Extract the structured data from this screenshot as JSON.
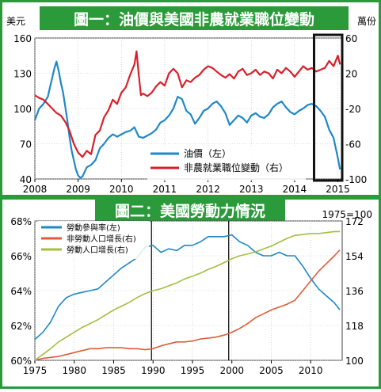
{
  "chart_data": [
    {
      "type": "line",
      "title": "圖一：油價與美國非農就業職位變動",
      "left_unit": "美元",
      "right_unit": "萬份",
      "x_ticks": [
        "2008",
        "2009",
        "2010",
        "2011",
        "2012",
        "2013",
        "2014",
        "2015"
      ],
      "x_range": [
        2008,
        2015.1
      ],
      "y_left_ticks": [
        "40",
        "70",
        "100",
        "130",
        "160"
      ],
      "y_left_range": [
        40,
        160
      ],
      "y_right_ticks": [
        "-100",
        "-60",
        "-20",
        "20",
        "60"
      ],
      "y_right_range": [
        -100,
        60
      ],
      "legend": [
        "油價（左）",
        "非農就業職位變動（右）"
      ],
      "grid": true,
      "highlight_box": [
        2014.45,
        2015.1
      ],
      "series": [
        {
          "name": "油價（左）",
          "axis": "left",
          "color": "#1e88c8",
          "x": [
            2008.0,
            2008.1,
            2008.2,
            2008.3,
            2008.35,
            2008.4,
            2008.45,
            2008.5,
            2008.55,
            2008.6,
            2008.65,
            2008.7,
            2008.75,
            2008.8,
            2008.85,
            2008.9,
            2008.95,
            2009.0,
            2009.05,
            2009.1,
            2009.15,
            2009.2,
            2009.3,
            2009.4,
            2009.5,
            2009.6,
            2009.7,
            2009.8,
            2009.9,
            2010.0,
            2010.1,
            2010.2,
            2010.3,
            2010.4,
            2010.5,
            2010.6,
            2010.7,
            2010.8,
            2010.9,
            2011.0,
            2011.1,
            2011.2,
            2011.3,
            2011.4,
            2011.5,
            2011.6,
            2011.7,
            2011.8,
            2011.9,
            2012.0,
            2012.1,
            2012.2,
            2012.3,
            2012.4,
            2012.5,
            2012.6,
            2012.7,
            2012.8,
            2012.9,
            2013.0,
            2013.1,
            2013.2,
            2013.3,
            2013.4,
            2013.5,
            2013.6,
            2013.7,
            2013.8,
            2013.9,
            2014.0,
            2014.1,
            2014.2,
            2014.3,
            2014.4,
            2014.5,
            2014.6,
            2014.7,
            2014.8,
            2014.9,
            2015.0,
            2015.05
          ],
          "y": [
            90,
            100,
            104,
            110,
            118,
            126,
            134,
            140,
            132,
            122,
            114,
            102,
            90,
            76,
            64,
            56,
            48,
            43,
            41,
            42,
            46,
            50,
            52,
            56,
            66,
            70,
            75,
            78,
            76,
            78,
            80,
            81,
            84,
            76,
            75,
            77,
            79,
            82,
            88,
            90,
            94,
            100,
            110,
            108,
            98,
            95,
            87,
            92,
            98,
            100,
            104,
            106,
            102,
            96,
            86,
            90,
            94,
            92,
            88,
            94,
            96,
            93,
            92,
            95,
            101,
            104,
            106,
            101,
            97,
            95,
            98,
            100,
            103,
            104,
            102,
            98,
            93,
            82,
            75,
            58,
            48
          ]
        },
        {
          "name": "非農就業職位變動（右）",
          "axis": "right",
          "color": "#d8202a",
          "x": [
            2008.0,
            2008.1,
            2008.2,
            2008.3,
            2008.4,
            2008.5,
            2008.6,
            2008.7,
            2008.8,
            2008.9,
            2009.0,
            2009.1,
            2009.2,
            2009.3,
            2009.4,
            2009.5,
            2009.6,
            2009.7,
            2009.8,
            2009.9,
            2010.0,
            2010.1,
            2010.2,
            2010.3,
            2010.35,
            2010.4,
            2010.45,
            2010.5,
            2010.6,
            2010.7,
            2010.8,
            2010.9,
            2011.0,
            2011.1,
            2011.2,
            2011.3,
            2011.4,
            2011.5,
            2011.6,
            2011.7,
            2011.8,
            2011.9,
            2012.0,
            2012.1,
            2012.2,
            2012.3,
            2012.4,
            2012.5,
            2012.6,
            2012.7,
            2012.8,
            2012.9,
            2013.0,
            2013.1,
            2013.2,
            2013.3,
            2013.4,
            2013.5,
            2013.6,
            2013.7,
            2013.8,
            2013.9,
            2014.0,
            2014.1,
            2014.2,
            2014.3,
            2014.4,
            2014.5,
            2014.6,
            2014.7,
            2014.8,
            2014.9,
            2015.0,
            2015.05
          ],
          "y": [
            -5,
            -8,
            -10,
            -15,
            -20,
            -25,
            -28,
            -35,
            -45,
            -60,
            -70,
            -75,
            -68,
            -72,
            -50,
            -45,
            -30,
            -22,
            -10,
            -15,
            -2,
            4,
            18,
            30,
            45,
            18,
            -5,
            -3,
            -6,
            -2,
            5,
            10,
            6,
            20,
            25,
            20,
            4,
            12,
            10,
            15,
            18,
            24,
            28,
            26,
            22,
            18,
            15,
            19,
            14,
            22,
            25,
            18,
            20,
            24,
            18,
            22,
            20,
            14,
            24,
            20,
            26,
            22,
            16,
            22,
            28,
            24,
            26,
            22,
            24,
            26,
            34,
            28,
            40,
            30
          ]
        }
      ]
    },
    {
      "type": "line",
      "title": "圖二：美國勞動力情況",
      "base_note": "1975=100",
      "x_ticks": [
        "1975",
        "1980",
        "1985",
        "1990",
        "1995",
        "2000",
        "2005",
        "2010"
      ],
      "x_range": [
        1975,
        2014
      ],
      "y_left_ticks": [
        "60%",
        "62%",
        "64%",
        "66%",
        "68%"
      ],
      "y_left_range": [
        60,
        68
      ],
      "y_right_ticks": [
        "100",
        "118",
        "136",
        "154",
        "172"
      ],
      "y_right_range": [
        100,
        172
      ],
      "legend": [
        "勞動參與率(左)",
        "非勞動人口增長(右)",
        "勞動人口增長(右)"
      ],
      "vertical_markers": [
        1989.8,
        1999.6
      ],
      "grid": true,
      "series": [
        {
          "name": "勞動參與率(左)",
          "axis": "left",
          "color": "#1e88c8",
          "x": [
            1975,
            1976,
            1977,
            1978,
            1979,
            1980,
            1981,
            1982,
            1983,
            1984,
            1985,
            1986,
            1987,
            1988,
            1989,
            1990,
            1991,
            1992,
            1993,
            1994,
            1995,
            1996,
            1997,
            1998,
            1999,
            2000,
            2001,
            2002,
            2003,
            2004,
            2005,
            2006,
            2007,
            2008,
            2009,
            2010,
            2011,
            2012,
            2013,
            2013.7
          ],
          "y": [
            61.2,
            61.6,
            62.2,
            63.1,
            63.6,
            63.8,
            63.9,
            64.0,
            64.1,
            64.5,
            64.9,
            65.3,
            65.6,
            65.9,
            66.5,
            66.6,
            66.2,
            66.4,
            66.3,
            66.6,
            66.6,
            66.8,
            67.1,
            67.1,
            67.1,
            67.2,
            66.8,
            66.6,
            66.2,
            66.0,
            66.0,
            66.2,
            66.0,
            66.0,
            65.4,
            64.7,
            64.1,
            63.7,
            63.3,
            62.9
          ]
        },
        {
          "name": "非勞動人口增長(右)",
          "axis": "right",
          "color": "#e05a3a",
          "x": [
            1975,
            1976,
            1977,
            1978,
            1979,
            1980,
            1981,
            1982,
            1983,
            1984,
            1985,
            1986,
            1987,
            1988,
            1989,
            1990,
            1991,
            1992,
            1993,
            1994,
            1995,
            1996,
            1997,
            1998,
            1999,
            2000,
            2001,
            2002,
            2003,
            2004,
            2005,
            2006,
            2007,
            2008,
            2009,
            2010,
            2011,
            2012,
            2013,
            2013.7
          ],
          "y": [
            100,
            101,
            101.5,
            102,
            103,
            104,
            105,
            106,
            106,
            106.5,
            106.5,
            106.5,
            106,
            106,
            105.5,
            106,
            107.5,
            108.5,
            109.5,
            109.5,
            110,
            111,
            111.5,
            112,
            113,
            114.5,
            116.5,
            119,
            122,
            124,
            126,
            127.5,
            129,
            131,
            136,
            141,
            146,
            150,
            154,
            157
          ]
        },
        {
          "name": "勞動人口增長(右)",
          "axis": "right",
          "color": "#a0c040",
          "x": [
            1975,
            1976,
            1977,
            1978,
            1979,
            1980,
            1981,
            1982,
            1983,
            1984,
            1985,
            1986,
            1987,
            1988,
            1989,
            1990,
            1991,
            1992,
            1993,
            1994,
            1995,
            1996,
            1997,
            1998,
            1999,
            2000,
            2001,
            2002,
            2003,
            2004,
            2005,
            2006,
            2007,
            2008,
            2009,
            2010,
            2011,
            2012,
            2013,
            2013.7
          ],
          "y": [
            100,
            103,
            106,
            109.5,
            112,
            114.5,
            117,
            119,
            121,
            123.5,
            126,
            128,
            130,
            132.5,
            134.5,
            136,
            137,
            138.5,
            140,
            142,
            143.5,
            145,
            147,
            148.5,
            150.5,
            152.5,
            154,
            155,
            156,
            157.5,
            159,
            161,
            163,
            164.5,
            165,
            165.5,
            165.5,
            166,
            166.5,
            166.5
          ]
        }
      ]
    }
  ]
}
